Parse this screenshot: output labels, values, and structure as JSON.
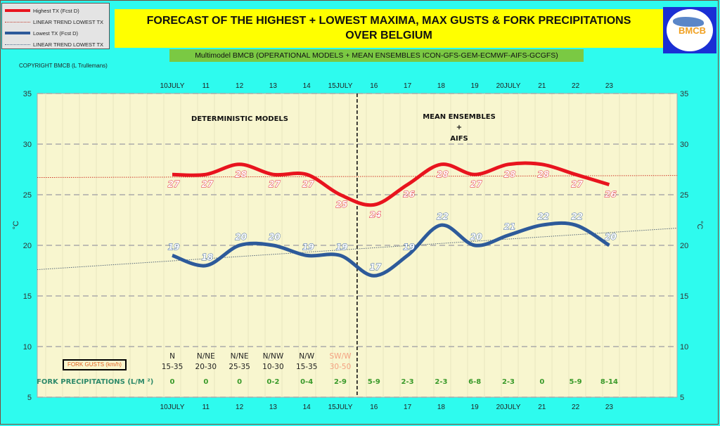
{
  "title_line1": "FORECAST OF THE HIGHEST + LOWEST MAXIMA, MAX GUSTS & FORK PRECIPITATIONS",
  "title_line2": "OVER BELGIUM",
  "subtitle": "Multimodel BMCB (OPERATIONAL MODELS + MEAN ENSEMBLES  ICON-GFS-GEM-ECMWF-AIFS-GCGFS)",
  "copyright": "COPYRIGHT BMCB (L Trullemans)",
  "logo_text": "BMCB",
  "legend": [
    {
      "label": "Highest TX (Fcst D)",
      "color": "#e8141e",
      "style": "solid"
    },
    {
      "label": "LINEAR TREND LOWEST  TX",
      "color": "#c0392b",
      "style": "dotted"
    },
    {
      "label": "Lowest TX (Fcst D)",
      "color": "#2d5a9a",
      "style": "solid"
    },
    {
      "label": "LINEAR TREND LOWEST TX",
      "color": "#4a6a8a",
      "style": "dotted"
    }
  ],
  "annotations": {
    "left_section": "DETERMINISTIC MODELS",
    "right_section_1": "MEAN ENSEMBLES",
    "right_section_2": "+",
    "right_section_3": "AIFS"
  },
  "gusts_label": "FORK GUSTS (km/h)",
  "precip_label": "FORK PRECIPITATIONS (L/M ²)",
  "chart_data": {
    "type": "line",
    "title": "FORECAST OF THE HIGHEST + LOWEST MAXIMA, MAX GUSTS & FORK PRECIPITATIONS OVER BELGIUM",
    "categories": [
      "10JULY",
      "11",
      "12",
      "13",
      "14",
      "15JULY",
      "16",
      "17",
      "18",
      "19",
      "20JULY",
      "21",
      "22",
      "23"
    ],
    "ylabel": "°C",
    "ylabel_right": "°C",
    "ylim": [
      5,
      35
    ],
    "yticks": [
      5,
      10,
      15,
      20,
      25,
      30,
      35
    ],
    "grid": true,
    "legend_position": "top-left",
    "split_after_category": "15JULY",
    "series": [
      {
        "name": "Highest TX (Fcst D)",
        "color": "#e8141e",
        "values": [
          27,
          27,
          28,
          27,
          27,
          25,
          24,
          26,
          28,
          27,
          28,
          28,
          27,
          26
        ]
      },
      {
        "name": "Lowest TX (Fcst D)",
        "color": "#2d5a9a",
        "values": [
          19,
          18,
          20,
          20,
          19,
          19,
          17,
          19,
          22,
          20,
          21,
          22,
          22,
          20
        ]
      }
    ],
    "trends": [
      {
        "name": "LINEAR TREND LOWEST  TX (highest)",
        "color": "#d03a2a",
        "start": 26.7,
        "end": 26.9
      },
      {
        "name": "LINEAR TREND LOWEST TX",
        "color": "#55677a",
        "start": 17.6,
        "end": 21.7
      }
    ],
    "gusts": [
      {
        "dir": "N",
        "range": "15-35"
      },
      {
        "dir": "N/NE",
        "range": "20-30"
      },
      {
        "dir": "N/NE",
        "range": "25-35"
      },
      {
        "dir": "N/NW",
        "range": "10-30"
      },
      {
        "dir": "N/W",
        "range": "15-35"
      },
      {
        "dir": "SW/W",
        "range": "30-50",
        "highlight": true
      }
    ],
    "precipitation": [
      "0",
      "0",
      "0",
      "0-2",
      "0-4",
      "2-9",
      "5-9",
      "2-3",
      "2-3",
      "6-8",
      "2-3",
      "0",
      "5-9",
      "8-14"
    ]
  }
}
